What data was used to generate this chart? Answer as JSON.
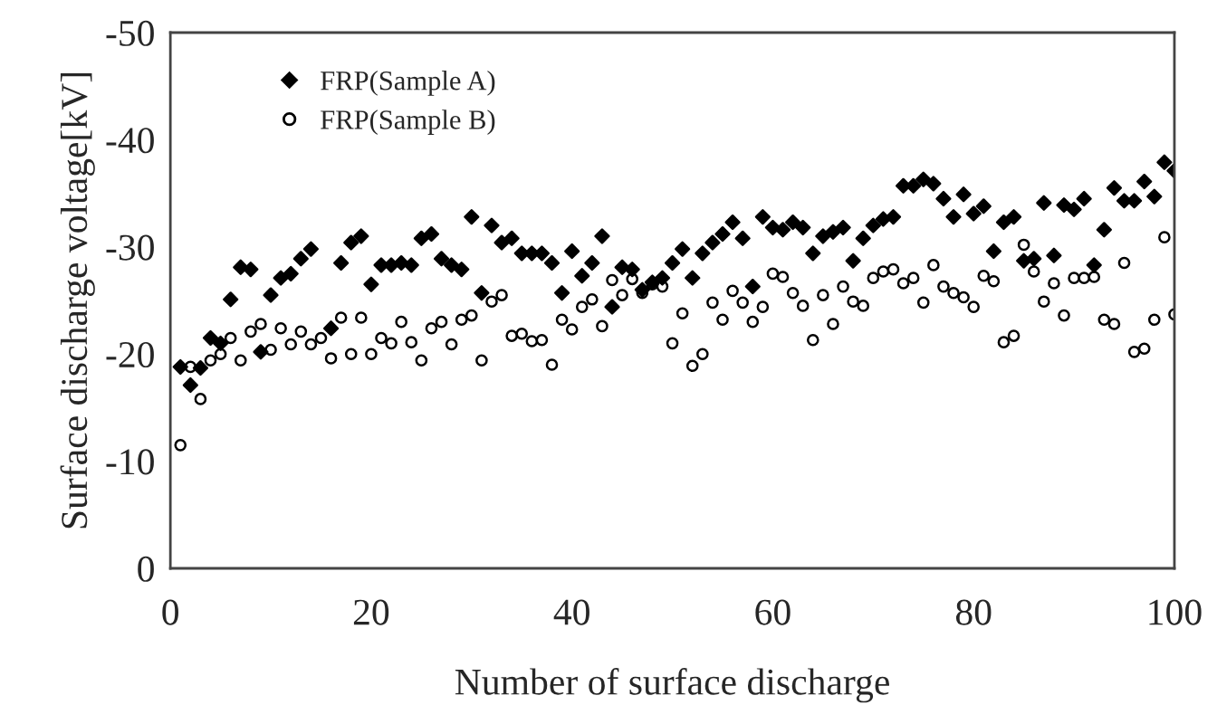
{
  "chart_data": {
    "type": "scatter",
    "xlabel": "Number of surface discharge",
    "ylabel": "Surface discharge voltage[kV]",
    "x": [
      1,
      2,
      3,
      4,
      5,
      6,
      7,
      8,
      9,
      10,
      11,
      12,
      13,
      14,
      15,
      16,
      17,
      18,
      19,
      20,
      21,
      22,
      23,
      24,
      25,
      26,
      27,
      28,
      29,
      30,
      31,
      32,
      33,
      34,
      35,
      36,
      37,
      38,
      39,
      40,
      41,
      42,
      43,
      44,
      45,
      46,
      47,
      48,
      49,
      50,
      51,
      52,
      53,
      54,
      55,
      56,
      57,
      58,
      59,
      60,
      61,
      62,
      63,
      64,
      65,
      66,
      67,
      68,
      69,
      70,
      71,
      72,
      73,
      74,
      75,
      76,
      77,
      78,
      79,
      80,
      81,
      82,
      83,
      84,
      85,
      86,
      87,
      88,
      89,
      90,
      91,
      92,
      93,
      94,
      95,
      96,
      97,
      98,
      99,
      100
    ],
    "series": [
      {
        "name": "FRP(Sample A)",
        "color": "#000000",
        "marker": "diamond",
        "values": [
          -18.8,
          -17.1,
          -18.7,
          -21.5,
          -21.0,
          -25.1,
          -28.1,
          -27.9,
          -20.2,
          -25.5,
          -27.1,
          -27.5,
          -28.9,
          -29.8,
          null,
          -22.4,
          -28.5,
          -30.4,
          -31.0,
          -26.5,
          -28.3,
          -28.3,
          -28.5,
          -28.3,
          -30.8,
          -31.2,
          -28.9,
          -28.3,
          -27.9,
          -32.8,
          -25.7,
          -32.0,
          -30.4,
          -30.8,
          -29.4,
          -29.4,
          -29.4,
          -28.5,
          -25.7,
          -29.6,
          -27.3,
          -28.5,
          -31.0,
          -24.4,
          -28.1,
          -27.9,
          -26.0,
          -26.7,
          -27.1,
          -28.5,
          -29.8,
          -27.1,
          -29.4,
          -30.4,
          -31.2,
          -32.3,
          -30.8,
          -26.3,
          -32.8,
          -31.8,
          -31.6,
          -32.3,
          -31.8,
          -29.4,
          -31.0,
          -31.4,
          -31.8,
          -28.7,
          -30.8,
          -32.0,
          -32.6,
          -32.8,
          -35.7,
          -35.7,
          -36.3,
          -35.9,
          -34.5,
          -32.8,
          -34.9,
          -33.1,
          -33.8,
          -29.6,
          -32.3,
          -32.8,
          -28.7,
          -28.9,
          -34.1,
          -29.2,
          -33.9,
          -33.5,
          -34.5,
          -28.3,
          -31.6,
          -35.5,
          -34.3,
          -34.3,
          -36.1,
          -34.7,
          -37.9,
          -37.1
        ]
      },
      {
        "name": "FRP(Sample B)",
        "color": "#000000",
        "marker": "circle",
        "values": [
          -11.5,
          -18.8,
          -15.8,
          -19.4,
          -20.0,
          -21.5,
          -19.4,
          -22.1,
          -22.8,
          -20.4,
          -22.4,
          -20.9,
          -22.1,
          -20.9,
          -21.5,
          -19.6,
          -23.4,
          -20.0,
          -23.4,
          -20.0,
          -21.5,
          -21.0,
          -23.0,
          -21.1,
          -19.4,
          -22.4,
          -23.0,
          -20.9,
          -23.2,
          -23.6,
          -19.4,
          -24.9,
          -25.5,
          -21.7,
          -21.9,
          -21.2,
          -21.3,
          -19.0,
          -23.2,
          -22.3,
          -24.4,
          -25.1,
          -22.6,
          -26.9,
          -25.5,
          -27.0,
          -25.7,
          -26.5,
          -26.3,
          -21.0,
          -23.8,
          -18.9,
          -20.0,
          -24.8,
          -23.2,
          -25.9,
          -24.8,
          -23.0,
          -24.4,
          -27.5,
          -27.2,
          -25.7,
          -24.5,
          -21.3,
          -25.5,
          -22.8,
          -26.3,
          -24.9,
          -24.5,
          -27.1,
          -27.7,
          -27.9,
          -26.6,
          -27.1,
          -24.8,
          -28.3,
          -26.3,
          -25.7,
          -25.3,
          -24.4,
          -27.3,
          -26.8,
          -21.1,
          -21.7,
          -30.2,
          -27.7,
          -24.9,
          -26.6,
          -23.6,
          -27.1,
          -27.1,
          -27.2,
          -23.2,
          -22.8,
          -28.5,
          -20.2,
          -20.5,
          -23.2,
          -30.9,
          -23.7
        ]
      }
    ],
    "xlim": [
      0,
      100
    ],
    "xticks": [
      0,
      20,
      40,
      60,
      80,
      100
    ],
    "ylim": [
      0,
      -50
    ],
    "yticks": [
      0,
      -10,
      -20,
      -30,
      -40,
      -50
    ],
    "grid": false,
    "legend": "top left"
  }
}
